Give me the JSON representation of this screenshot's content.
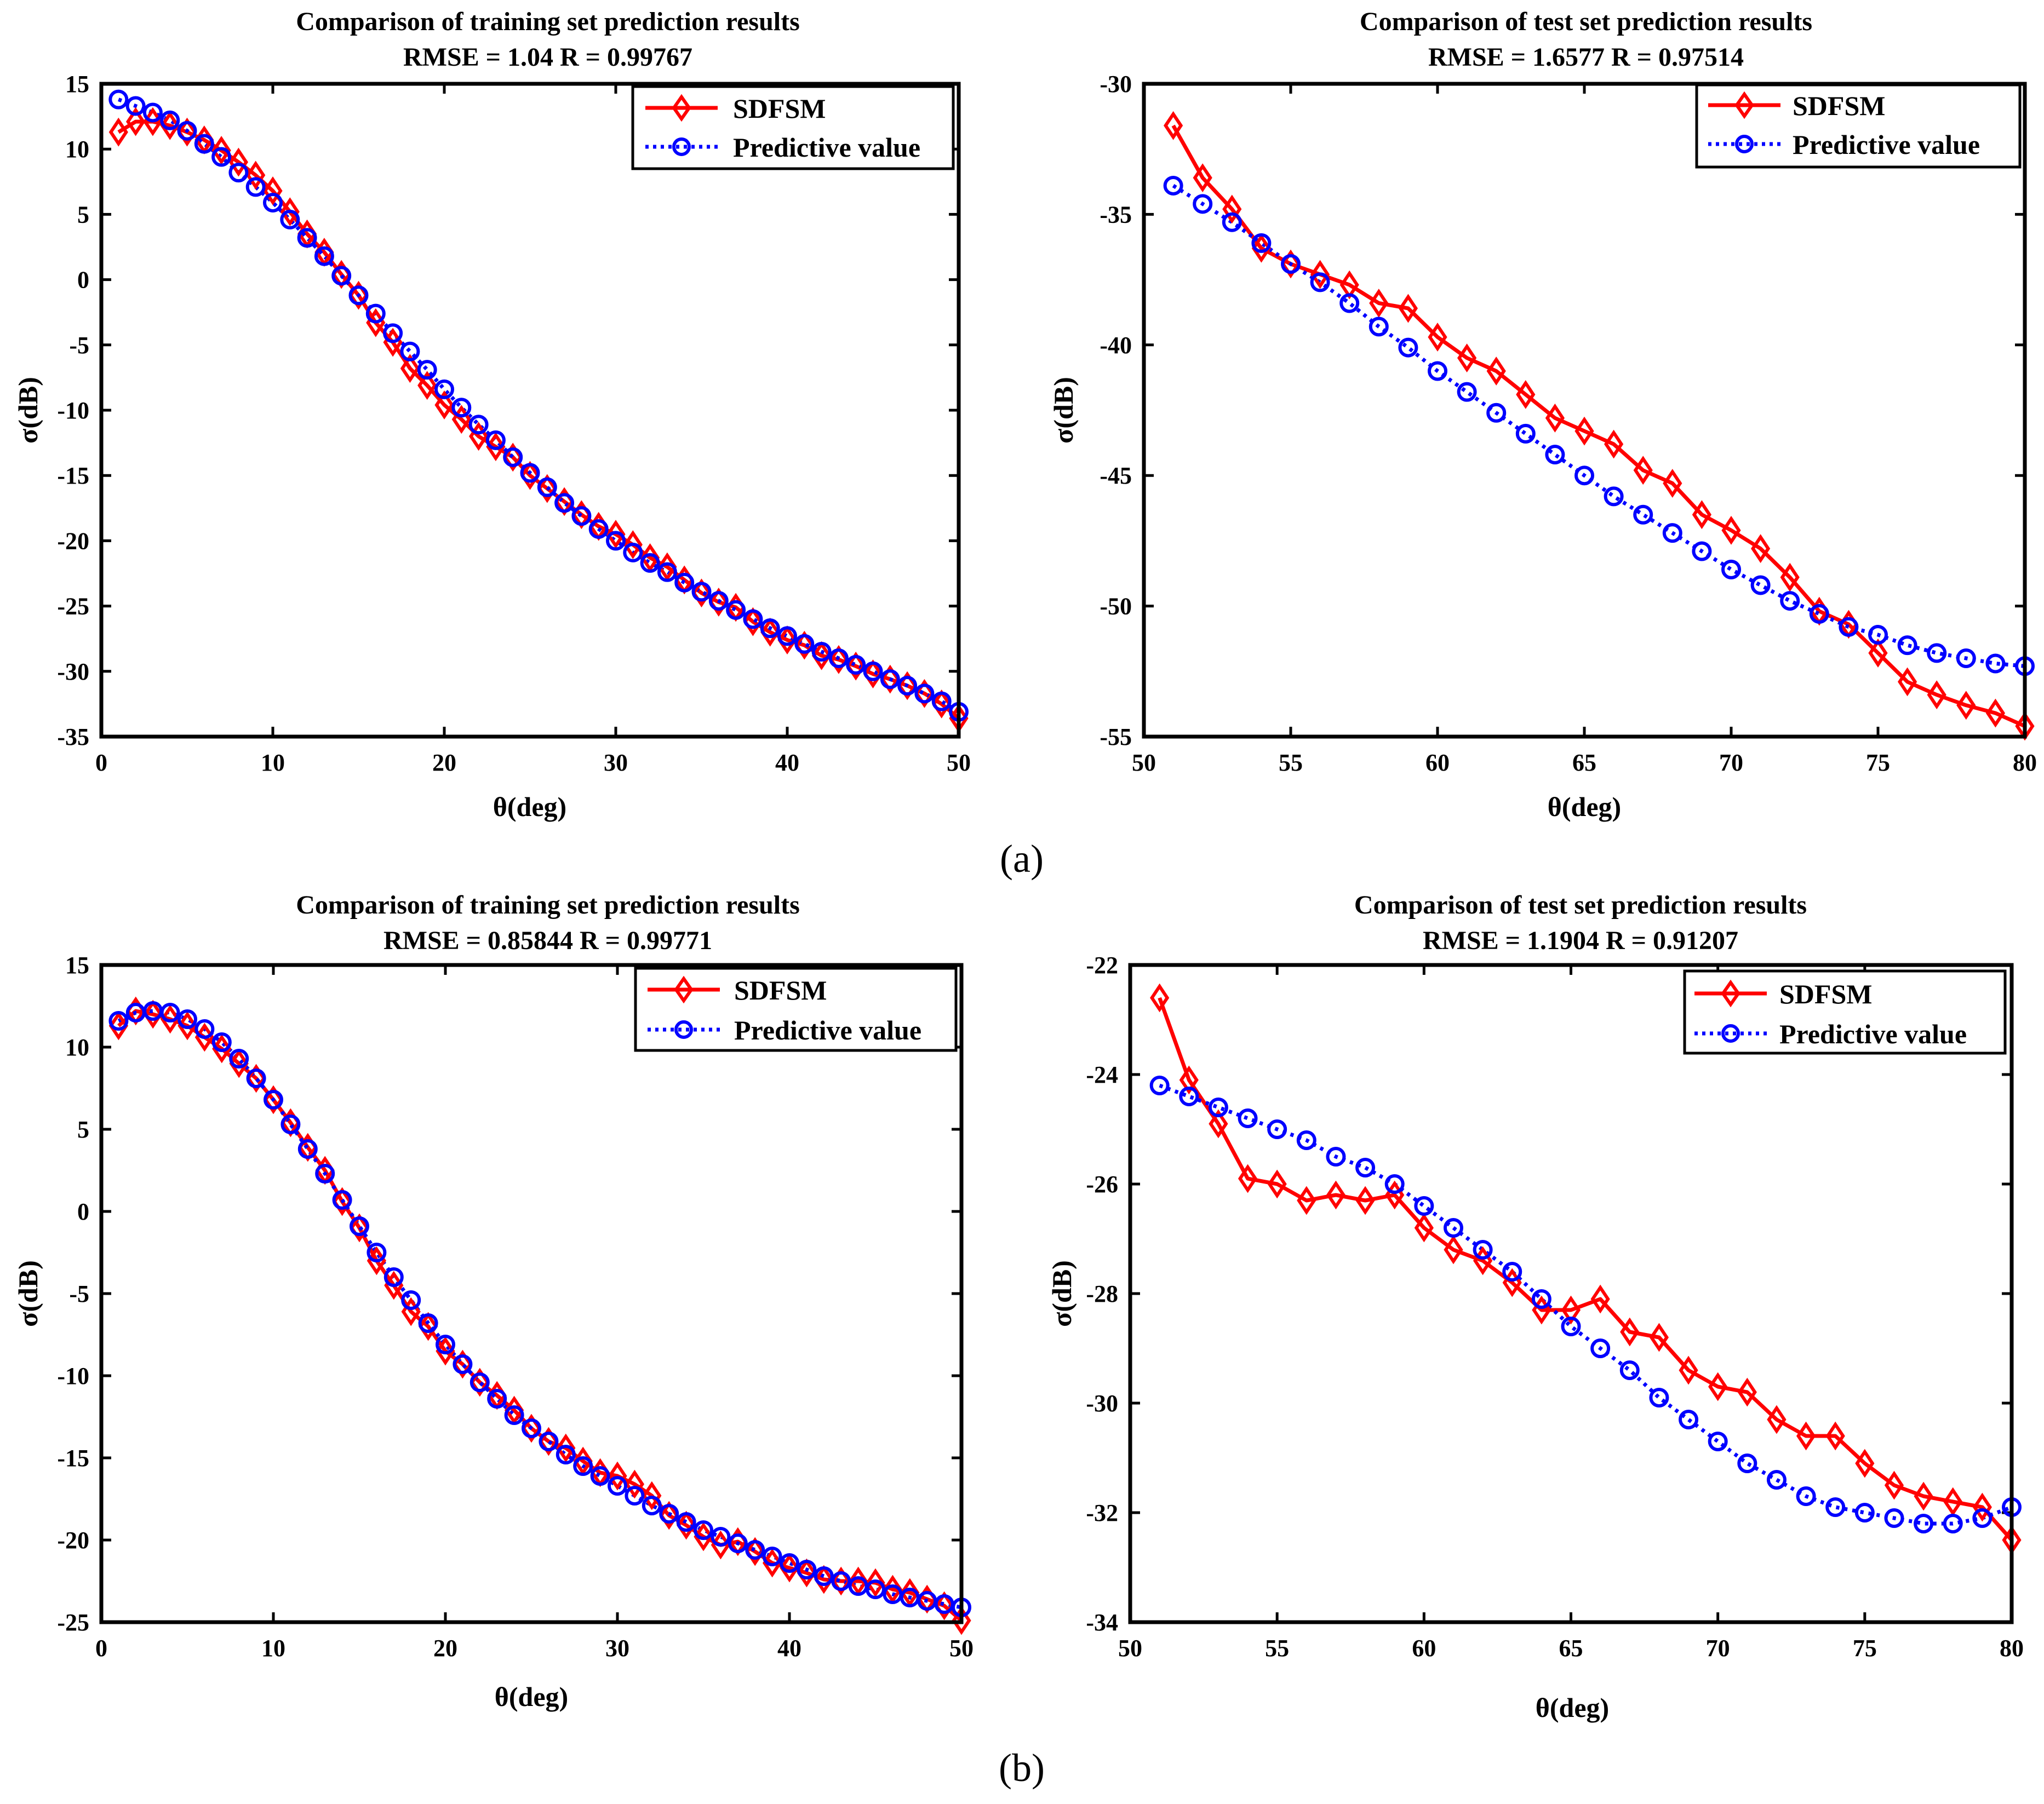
{
  "panel_labels": [
    "(a)",
    "(b)"
  ],
  "colors": {
    "sdfsm": "#ff0000",
    "predictive": "#0000ff",
    "axis": "#000000",
    "background": "#ffffff"
  },
  "chart_data": [
    {
      "type": "line",
      "panel": "(a)",
      "title": "Comparison of training set prediction results",
      "subtitle": "RMSE = 1.04  R = 0.99767",
      "xlabel": "θ(deg)",
      "ylabel": "σ(dB)",
      "xlim": [
        0,
        50
      ],
      "ylim": [
        -35,
        15
      ],
      "xticks": [
        0,
        10,
        20,
        30,
        40,
        50
      ],
      "yticks": [
        -35,
        -30,
        -25,
        -20,
        -15,
        -10,
        -5,
        0,
        5,
        10,
        15
      ],
      "grid": false,
      "legend": "top-right",
      "x": [
        1,
        2,
        3,
        4,
        5,
        6,
        7,
        8,
        9,
        10,
        11,
        12,
        13,
        14,
        15,
        16,
        17,
        18,
        19,
        20,
        21,
        22,
        23,
        24,
        25,
        26,
        27,
        28,
        29,
        30,
        31,
        32,
        33,
        34,
        35,
        36,
        37,
        38,
        39,
        40,
        41,
        42,
        43,
        44,
        45,
        46,
        47,
        48,
        49,
        50
      ],
      "series": [
        {
          "name": "SDFSM",
          "marker": "diamond",
          "style": "solid",
          "values": [
            11.3,
            12.1,
            12.1,
            11.8,
            11.3,
            10.7,
            9.9,
            9.0,
            8.0,
            6.8,
            5.2,
            3.5,
            2.1,
            0.4,
            -1.2,
            -3.3,
            -4.8,
            -6.8,
            -8.1,
            -9.6,
            -10.7,
            -12.0,
            -12.8,
            -13.6,
            -15.0,
            -16.0,
            -17.0,
            -18.0,
            -18.9,
            -19.5,
            -20.3,
            -21.3,
            -22.0,
            -23.0,
            -24.0,
            -24.7,
            -25.1,
            -26.2,
            -27.0,
            -27.6,
            -28.0,
            -28.8,
            -29.1,
            -29.6,
            -30.2,
            -30.6,
            -31.1,
            -31.7,
            -32.5,
            -33.6
          ]
        },
        {
          "name": "Predictive value",
          "marker": "circle",
          "style": "dotted",
          "values": [
            13.8,
            13.3,
            12.8,
            12.2,
            11.4,
            10.4,
            9.4,
            8.2,
            7.1,
            5.9,
            4.6,
            3.2,
            1.8,
            0.3,
            -1.2,
            -2.6,
            -4.1,
            -5.5,
            -6.9,
            -8.4,
            -9.8,
            -11.1,
            -12.3,
            -13.6,
            -14.8,
            -15.9,
            -17.1,
            -18.1,
            -19.1,
            -20.0,
            -20.9,
            -21.7,
            -22.4,
            -23.2,
            -23.9,
            -24.6,
            -25.3,
            -26.0,
            -26.7,
            -27.3,
            -27.9,
            -28.5,
            -29.0,
            -29.5,
            -30.0,
            -30.6,
            -31.1,
            -31.7,
            -32.3,
            -33.1
          ]
        }
      ]
    },
    {
      "type": "line",
      "panel": "(a)",
      "title": "Comparison of test set prediction results",
      "subtitle": "RMSE = 1.6577  R = 0.97514",
      "xlabel": "θ(deg)",
      "ylabel": "σ(dB)",
      "xlim": [
        50,
        80
      ],
      "ylim": [
        -55,
        -30
      ],
      "xticks": [
        50,
        55,
        60,
        65,
        70,
        75,
        80
      ],
      "yticks": [
        -55,
        -50,
        -45,
        -40,
        -35,
        -30
      ],
      "grid": false,
      "legend": "top-right",
      "x": [
        51,
        52,
        53,
        54,
        55,
        56,
        57,
        58,
        59,
        60,
        61,
        62,
        63,
        64,
        65,
        66,
        67,
        68,
        69,
        70,
        71,
        72,
        73,
        74,
        75,
        76,
        77,
        78,
        79,
        80
      ],
      "series": [
        {
          "name": "SDFSM",
          "marker": "diamond",
          "style": "solid",
          "values": [
            -31.6,
            -33.6,
            -34.8,
            -36.3,
            -36.9,
            -37.3,
            -37.7,
            -38.4,
            -38.6,
            -39.7,
            -40.5,
            -41.0,
            -41.9,
            -42.8,
            -43.3,
            -43.8,
            -44.8,
            -45.3,
            -46.5,
            -47.1,
            -47.8,
            -48.9,
            -50.2,
            -50.7,
            -51.8,
            -52.9,
            -53.4,
            -53.8,
            -54.1,
            -54.6
          ]
        },
        {
          "name": "Predictive value",
          "marker": "circle",
          "style": "dotted",
          "values": [
            -33.9,
            -34.6,
            -35.3,
            -36.1,
            -36.9,
            -37.6,
            -38.4,
            -39.3,
            -40.1,
            -41.0,
            -41.8,
            -42.6,
            -43.4,
            -44.2,
            -45.0,
            -45.8,
            -46.5,
            -47.2,
            -47.9,
            -48.6,
            -49.2,
            -49.8,
            -50.3,
            -50.8,
            -51.1,
            -51.5,
            -51.8,
            -52.0,
            -52.2,
            -52.3
          ]
        }
      ]
    },
    {
      "type": "line",
      "panel": "(b)",
      "title": "Comparison of training set prediction results",
      "subtitle": "RMSE = 0.85844  R = 0.99771",
      "xlabel": "θ(deg)",
      "ylabel": "σ(dB)",
      "xlim": [
        0,
        50
      ],
      "ylim": [
        -25,
        15
      ],
      "xticks": [
        0,
        10,
        20,
        30,
        40,
        50
      ],
      "yticks": [
        -25,
        -20,
        -15,
        -10,
        -5,
        0,
        5,
        10,
        15
      ],
      "grid": false,
      "legend": "top-right",
      "x": [
        1,
        2,
        3,
        4,
        5,
        6,
        7,
        8,
        9,
        10,
        11,
        12,
        13,
        14,
        15,
        16,
        17,
        18,
        19,
        20,
        21,
        22,
        23,
        24,
        25,
        26,
        27,
        28,
        29,
        30,
        31,
        32,
        33,
        34,
        35,
        36,
        37,
        38,
        39,
        40,
        41,
        42,
        43,
        44,
        45,
        46,
        47,
        48,
        49,
        50
      ],
      "series": [
        {
          "name": "SDFSM",
          "marker": "diamond",
          "style": "solid",
          "values": [
            11.3,
            12.2,
            12.0,
            11.7,
            11.3,
            10.6,
            9.9,
            9.0,
            8.1,
            6.8,
            5.4,
            3.9,
            2.5,
            0.6,
            -1.0,
            -3.0,
            -4.5,
            -6.1,
            -7.0,
            -8.5,
            -9.3,
            -10.4,
            -11.2,
            -12.1,
            -13.2,
            -14.0,
            -14.4,
            -15.2,
            -15.9,
            -16.1,
            -16.6,
            -17.3,
            -18.5,
            -19.1,
            -19.8,
            -20.3,
            -20.1,
            -20.7,
            -21.4,
            -21.7,
            -22.0,
            -22.4,
            -22.5,
            -22.5,
            -22.6,
            -23.0,
            -23.2,
            -23.6,
            -24.0,
            -24.9
          ]
        },
        {
          "name": "Predictive value",
          "marker": "circle",
          "style": "dotted",
          "values": [
            11.6,
            12.1,
            12.2,
            12.1,
            11.7,
            11.1,
            10.3,
            9.3,
            8.1,
            6.8,
            5.3,
            3.8,
            2.3,
            0.7,
            -0.9,
            -2.5,
            -4.0,
            -5.4,
            -6.8,
            -8.1,
            -9.3,
            -10.4,
            -11.4,
            -12.4,
            -13.2,
            -14.0,
            -14.8,
            -15.5,
            -16.1,
            -16.7,
            -17.3,
            -17.9,
            -18.4,
            -18.9,
            -19.4,
            -19.8,
            -20.2,
            -20.6,
            -21.0,
            -21.4,
            -21.8,
            -22.2,
            -22.5,
            -22.8,
            -23.0,
            -23.3,
            -23.5,
            -23.7,
            -23.9,
            -24.1
          ]
        }
      ]
    },
    {
      "type": "line",
      "panel": "(b)",
      "title": "Comparison of test set prediction results",
      "subtitle": "RMSE = 1.1904  R = 0.91207",
      "xlabel": "θ(deg)",
      "ylabel": "σ(dB)",
      "xlim": [
        50,
        80
      ],
      "ylim": [
        -34,
        -22
      ],
      "xticks": [
        50,
        55,
        60,
        65,
        70,
        75,
        80
      ],
      "yticks": [
        -34,
        -32,
        -30,
        -28,
        -26,
        -24,
        -22
      ],
      "grid": false,
      "legend": "top-right",
      "x": [
        51,
        52,
        53,
        54,
        55,
        56,
        57,
        58,
        59,
        60,
        61,
        62,
        63,
        64,
        65,
        66,
        67,
        68,
        69,
        70,
        71,
        72,
        73,
        74,
        75,
        76,
        77,
        78,
        79,
        80
      ],
      "series": [
        {
          "name": "SDFSM",
          "marker": "diamond",
          "style": "solid",
          "values": [
            -22.6,
            -24.1,
            -24.9,
            -25.9,
            -26.0,
            -26.3,
            -26.2,
            -26.3,
            -26.2,
            -26.8,
            -27.2,
            -27.4,
            -27.8,
            -28.3,
            -28.3,
            -28.1,
            -28.7,
            -28.8,
            -29.4,
            -29.7,
            -29.8,
            -30.3,
            -30.6,
            -30.6,
            -31.1,
            -31.5,
            -31.7,
            -31.8,
            -31.9,
            -32.5
          ]
        },
        {
          "name": "Predictive value",
          "marker": "circle",
          "style": "dotted",
          "values": [
            -24.2,
            -24.4,
            -24.6,
            -24.8,
            -25.0,
            -25.2,
            -25.5,
            -25.7,
            -26.0,
            -26.4,
            -26.8,
            -27.2,
            -27.6,
            -28.1,
            -28.6,
            -29.0,
            -29.4,
            -29.9,
            -30.3,
            -30.7,
            -31.1,
            -31.4,
            -31.7,
            -31.9,
            -32.0,
            -32.1,
            -32.2,
            -32.2,
            -32.1,
            -31.9
          ]
        }
      ]
    }
  ]
}
